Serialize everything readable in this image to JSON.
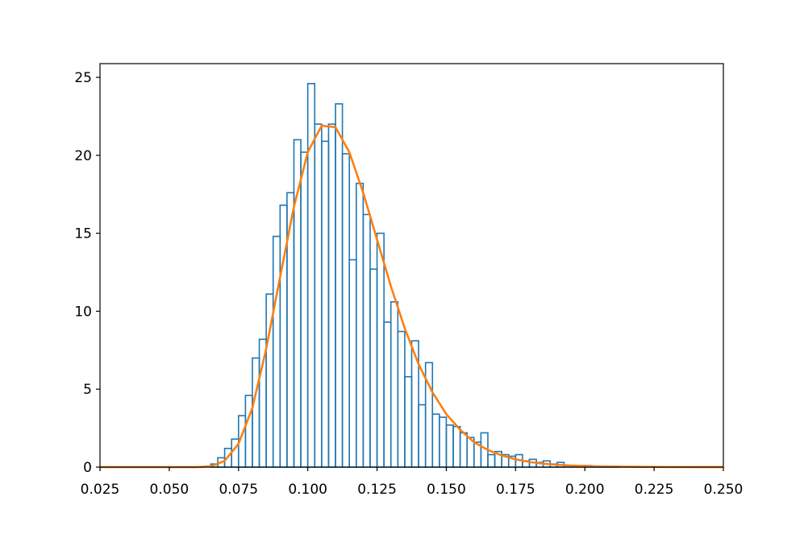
{
  "chart_data": [
    {
      "type": "histogram",
      "color": "#1f77b4",
      "bins": [
        0.065,
        0.0675,
        0.07,
        0.0725,
        0.075,
        0.0775,
        0.08,
        0.0825,
        0.085,
        0.0875,
        0.09,
        0.0925,
        0.095,
        0.0975,
        0.1,
        0.1025,
        0.105,
        0.1075,
        0.11,
        0.1125,
        0.115,
        0.1175,
        0.12,
        0.1225,
        0.125,
        0.1275,
        0.13,
        0.1325,
        0.135,
        0.1375,
        0.14,
        0.1425,
        0.145,
        0.1475,
        0.15,
        0.1525,
        0.155,
        0.1575,
        0.16,
        0.1625,
        0.165,
        0.1675,
        0.17,
        0.1725,
        0.175,
        0.1775,
        0.18,
        0.1825,
        0.185,
        0.1875,
        0.19,
        0.1925,
        0.195,
        0.1975,
        0.2,
        0.2025,
        0.205,
        0.2075,
        0.21,
        0.2125
      ],
      "values": [
        0.2,
        0.6,
        1.2,
        1.8,
        3.3,
        4.6,
        7.0,
        8.2,
        11.1,
        14.8,
        16.8,
        17.6,
        21.0,
        20.2,
        24.6,
        22.0,
        20.9,
        22.0,
        23.3,
        20.1,
        13.3,
        18.2,
        16.2,
        12.7,
        15.0,
        9.3,
        10.6,
        8.7,
        5.8,
        8.1,
        4.0,
        6.7,
        3.4,
        3.2,
        2.7,
        2.6,
        2.2,
        1.9,
        1.6,
        2.2,
        0.8,
        1.0,
        0.8,
        0.7,
        0.8,
        0.4,
        0.5,
        0.3,
        0.4,
        0.2,
        0.3,
        0.1,
        0.1,
        0.1,
        0.1,
        0.05,
        0.05,
        0.05,
        0.05
      ],
      "xlim": [
        0.025,
        0.25
      ],
      "ylim": [
        0,
        25.88
      ],
      "xticks": [
        0.025,
        {
          "value": 0.05,
          "label": "0.050"
        },
        0.075,
        {
          "value": 0.1,
          "label": "0.100"
        },
        0.125,
        {
          "value": 0.15,
          "label": "0.150"
        },
        0.175,
        {
          "value": 0.2,
          "label": "0.200"
        },
        0.225,
        {
          "value": 0.25,
          "label": "0.250"
        }
      ],
      "yticks": [
        0,
        5,
        10,
        15,
        20,
        25
      ]
    },
    {
      "type": "line",
      "color": "#ff7f0e",
      "x": [
        0.025,
        0.03,
        0.035,
        0.04,
        0.045,
        0.05,
        0.055,
        0.06,
        0.065,
        0.07,
        0.075,
        0.08,
        0.085,
        0.09,
        0.095,
        0.1,
        0.105,
        0.11,
        0.115,
        0.12,
        0.125,
        0.13,
        0.135,
        0.14,
        0.145,
        0.15,
        0.155,
        0.16,
        0.165,
        0.17,
        0.175,
        0.18,
        0.185,
        0.19,
        0.195,
        0.2,
        0.21,
        0.22,
        0.23,
        0.24,
        0.25
      ],
      "values": [
        0,
        0,
        0,
        0,
        0,
        0,
        0,
        0,
        0.05,
        0.4,
        1.5,
        3.8,
        7.6,
        12.2,
        16.7,
        20.2,
        21.9,
        21.8,
        20.2,
        17.6,
        14.6,
        11.6,
        8.9,
        6.6,
        4.8,
        3.4,
        2.4,
        1.6,
        1.1,
        0.75,
        0.5,
        0.33,
        0.22,
        0.15,
        0.1,
        0.07,
        0.03,
        0.015,
        0.007,
        0.003,
        0.001
      ]
    }
  ]
}
